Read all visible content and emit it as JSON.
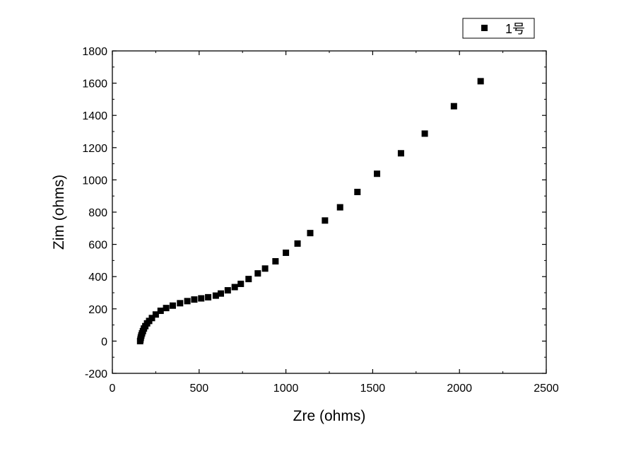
{
  "chart_data": {
    "type": "scatter",
    "xlabel": "Zre (ohms)",
    "ylabel": "Zim (ohms)",
    "xlim": [
      0,
      2500
    ],
    "ylim": [
      -200,
      1800
    ],
    "x_ticks": [
      0,
      500,
      1000,
      1500,
      2000,
      2500
    ],
    "y_ticks": [
      -200,
      0,
      200,
      400,
      600,
      800,
      1000,
      1200,
      1400,
      1600,
      1800
    ],
    "grid": false,
    "legend_position": "top-right",
    "marker": "square",
    "marker_color": "#000000",
    "series": [
      {
        "name": "1号",
        "x": [
          160,
          162,
          164,
          167,
          171,
          176,
          182,
          190,
          200,
          212,
          228,
          250,
          278,
          310,
          348,
          390,
          432,
          472,
          512,
          552,
          596,
          625,
          665,
          705,
          740,
          785,
          838,
          880,
          940,
          1000,
          1067,
          1140,
          1225,
          1312,
          1412,
          1525,
          1663,
          1800,
          1968,
          2122
        ],
        "y": [
          0,
          10,
          22,
          35,
          48,
          62,
          78,
          93,
          110,
          125,
          143,
          165,
          188,
          205,
          220,
          235,
          248,
          258,
          265,
          272,
          282,
          295,
          315,
          335,
          355,
          385,
          420,
          450,
          495,
          548,
          605,
          670,
          748,
          830,
          925,
          1038,
          1165,
          1287,
          1457,
          1612
        ]
      }
    ]
  }
}
